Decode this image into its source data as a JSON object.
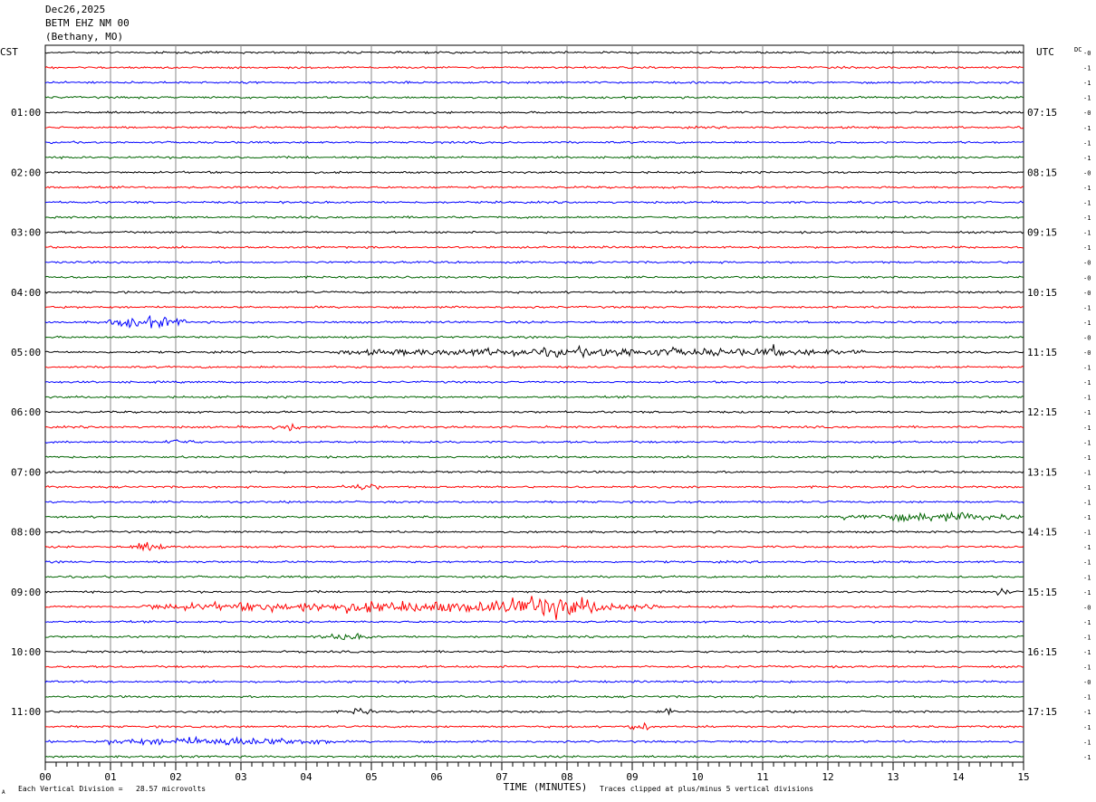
{
  "header": {
    "date": "Dec26,2025",
    "station": "BETM EHZ NM 00",
    "location": "(Bethany, MO)"
  },
  "footer": {
    "scale_note": "Each Vertical Division =   28.57 microvolts",
    "clip_note": "Traces clipped at plus/minus 5 vertical divisions",
    "corner_mark": "A"
  },
  "chart_data": {
    "type": "line",
    "title": "",
    "xlabel": "TIME (MINUTES)",
    "xlim": [
      0,
      15
    ],
    "x_ticks": [
      "00",
      "01",
      "02",
      "03",
      "04",
      "05",
      "06",
      "07",
      "08",
      "09",
      "10",
      "11",
      "12",
      "13",
      "14",
      "15"
    ],
    "left_axis_label": "CST",
    "right_axis_label": "UTC",
    "dc_label": "DC",
    "left_hour_labels": [
      "01:00",
      "02:00",
      "03:00",
      "04:00",
      "05:00",
      "06:00",
      "07:00",
      "08:00",
      "09:00",
      "10:00",
      "11:00"
    ],
    "right_hour_labels": [
      "07:15",
      "08:15",
      "09:15",
      "10:15",
      "11:15",
      "12:15",
      "13:15",
      "14:15",
      "15:15",
      "16:15",
      "17:15"
    ],
    "hour_label_rows": [
      4,
      8,
      12,
      16,
      20,
      24,
      28,
      32,
      36,
      40,
      44
    ],
    "trace_colors": [
      "#000000",
      "#ff0000",
      "#0000ff",
      "#006400"
    ],
    "dc_offsets": [
      "-0",
      "-1",
      "-1",
      "-1",
      "-0",
      "-1",
      "-1",
      "-1",
      "-0",
      "-1",
      "-1",
      "-1",
      "-1",
      "-1",
      "-0",
      "-0",
      "-0",
      "-1",
      "-1",
      "-0",
      "-0",
      "-1",
      "-1",
      "-1",
      "-1",
      "-1",
      "-1",
      "-1",
      "-1",
      "-1",
      "-1",
      "-1",
      "-1",
      "-1",
      "-1",
      "-1",
      "-1",
      "-0",
      "-1",
      "-1",
      "-1",
      "-1",
      "-0",
      "-1",
      "-1",
      "-1",
      "-1",
      "-1"
    ],
    "events": [
      {
        "trace": 18,
        "start": 0.9,
        "end": 2.2,
        "amplitude": 4
      },
      {
        "trace": 20,
        "start": 4.5,
        "end": 12.6,
        "amplitude": 3
      },
      {
        "trace": 20,
        "start": 11.1,
        "end": 11.2,
        "amplitude": 7
      },
      {
        "trace": 25,
        "start": 3.5,
        "end": 3.9,
        "amplitude": 3
      },
      {
        "trace": 26,
        "start": 1.8,
        "end": 2.3,
        "amplitude": 2
      },
      {
        "trace": 29,
        "start": 4.5,
        "end": 5.2,
        "amplitude": 2
      },
      {
        "trace": 31,
        "start": 12.2,
        "end": 15.0,
        "amplitude": 3
      },
      {
        "trace": 33,
        "start": 1.3,
        "end": 1.9,
        "amplitude": 3
      },
      {
        "trace": 37,
        "start": 1.5,
        "end": 9.5,
        "amplitude": 4
      },
      {
        "trace": 37,
        "start": 6.8,
        "end": 8.6,
        "amplitude": 9
      },
      {
        "trace": 36,
        "start": 14.6,
        "end": 14.8,
        "amplitude": 4
      },
      {
        "trace": 39,
        "start": 4.2,
        "end": 5.0,
        "amplitude": 2
      },
      {
        "trace": 44,
        "start": 4.7,
        "end": 5.0,
        "amplitude": 3
      },
      {
        "trace": 44,
        "start": 9.5,
        "end": 9.6,
        "amplitude": 4
      },
      {
        "trace": 45,
        "start": 8.9,
        "end": 9.3,
        "amplitude": 3
      },
      {
        "trace": 46,
        "start": 0.9,
        "end": 4.5,
        "amplitude": 3
      }
    ]
  }
}
